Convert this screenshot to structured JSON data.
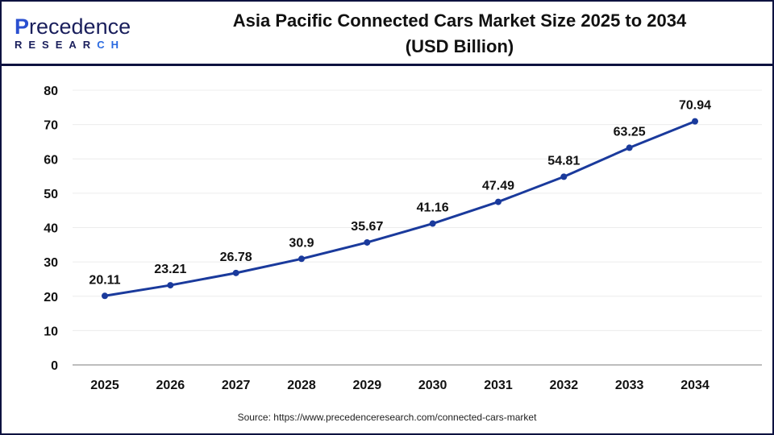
{
  "header": {
    "logo_text": "Precedence",
    "logo_subtext": "RESEARCH",
    "title_line1": "Asia Pacific Connected Cars Market Size 2025 to 2034",
    "title_line2": "(USD Billion)"
  },
  "chart_data": {
    "type": "line",
    "title": "Asia Pacific Connected Cars Market Size 2025 to 2034 (USD Billion)",
    "categories": [
      "2025",
      "2026",
      "2027",
      "2028",
      "2029",
      "2030",
      "2031",
      "2032",
      "2033",
      "2034"
    ],
    "values": [
      20.11,
      23.21,
      26.78,
      30.9,
      35.67,
      41.16,
      47.49,
      54.81,
      63.25,
      70.94
    ],
    "value_labels": [
      "20.11",
      "23.21",
      "26.78",
      "30.9",
      "35.67",
      "41.16",
      "47.49",
      "54.81",
      "63.25",
      "70.94"
    ],
    "yticks": [
      "0",
      "10",
      "20",
      "30",
      "40",
      "50",
      "60",
      "70",
      "80"
    ],
    "ylim": [
      0,
      80
    ],
    "grid": true,
    "line_color": "#1a3a9c"
  },
  "source": "Source: https://www.precedenceresearch.com/connected-cars-market"
}
